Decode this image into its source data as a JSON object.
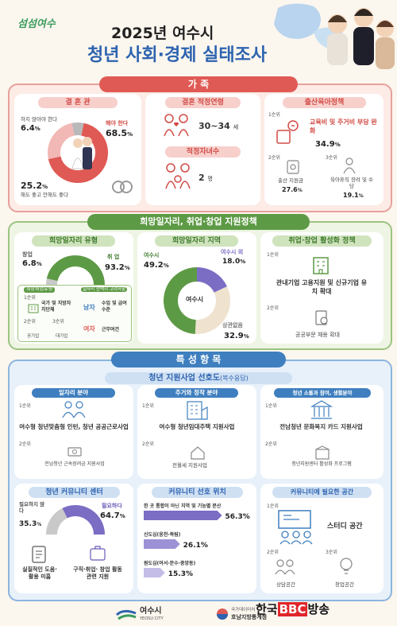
{
  "header": {
    "logo": "섬섬여수",
    "year_title": "2025년 여수시",
    "main_title": "청년 사회·경제 실태조사"
  },
  "sections": {
    "family": "가      족",
    "jobs": "희망일자리, 취업·창업 지원정책",
    "special": "특 성 항 목"
  },
  "family": {
    "marriage": {
      "title": "결 혼 관",
      "must": "해야 한다",
      "must_pct": "68.5",
      "shouldnot": "하지 않아야 한다",
      "shouldnot_pct": "6.4",
      "either": "해도 좋고 안해도 좋다",
      "either_pct": "25.2",
      "unit": "%"
    },
    "marriage_age": {
      "title": "결혼 적정연령",
      "range": "30~34",
      "unit": "세"
    },
    "children": {
      "title": "적정자녀수",
      "value": "2",
      "unit": "명"
    },
    "birth_policy": {
      "title": "출산육아정책",
      "rank1": "1순위",
      "item1": "교육비 및 주거비 부담 완화",
      "pct1": "34.9",
      "rank2": "2순위",
      "item2": "출산 지원금",
      "pct2": "27.6",
      "rank3": "3순위",
      "item3": "육아휴직 장려 및 수당",
      "pct3": "19.1",
      "unit": "%"
    }
  },
  "jobs": {
    "type": {
      "title": "희망일자리 유형",
      "startup": "창업",
      "startup_pct": "6.8",
      "job": "취 업",
      "job_pct": "93.2",
      "unit": "%",
      "inner_title1": "희망취업유형",
      "inner_title2": "일자리 선택시 고려사항",
      "r1": "1순위",
      "r1_item": "국가 및 지방자치단체",
      "r1_gender": "남자",
      "r1_consider": "수입 및 급여수준",
      "r2": "2순위",
      "r2_item": "공기업",
      "r3": "3순위",
      "r3_item": "대기업",
      "r2_gender": "여자",
      "r2_consider": "근무여건"
    },
    "region": {
      "title": "희망일자리 지역",
      "yeosu": "여수시",
      "yeosu_pct": "49.2",
      "outside": "여수시 외",
      "outside_pct": "18.0",
      "any": "상관없음",
      "any_pct": "32.9",
      "center": "여수시",
      "unit": "%"
    },
    "policy": {
      "title": "취업·창업 활성화 정책",
      "rank1": "1순위",
      "item1": "관내기업 고용지원 및 신규기업 유치 확대",
      "rank2": "2순위",
      "item2": "공공부문 채용 확대"
    }
  },
  "special": {
    "pref_title": "청년 지원사업 선호도",
    "pref_note": "(복수응답)",
    "col1": {
      "title": "일자리 분야",
      "rank1": "1순위",
      "item1": "여수형 청년맞춤형 인턴, 청년 공공근로사업",
      "rank2": "2순위",
      "item2": "전남청년 근속장려금 지원사업"
    },
    "col2": {
      "title": "주거와 정착 분야",
      "rank1": "1순위",
      "item1": "여수형 청년임대주택 지원사업",
      "rank2": "2순위",
      "item2": "전월세 지원사업"
    },
    "col3": {
      "title": "청년 소통과 참여, 생활분야",
      "rank1": "1순위",
      "item1": "전남청년 문화복지 카드 지원사업",
      "rank2": "2순위",
      "item2": "청년지원센터 활성화 프로그램"
    },
    "center": {
      "title": "청년 커뮤니티 센터",
      "no": "필요하지 않다",
      "no_pct": "35.3",
      "yes": "필요하다",
      "yes_pct": "64.7",
      "unit": "%",
      "reason_no": "실질적인 도움·활용 미흡",
      "reason_yes": "구직·취업· 창업 활동 관련 지원"
    },
    "location": {
      "title": "커뮤니티 선호 위치",
      "bars": [
        {
          "label": "한 곳 통합이 아닌 지역 및 기능별 분산",
          "value": 56.3
        },
        {
          "label": "신도심(웅천·죽림)",
          "value": 26.1
        },
        {
          "label": "원도심(여서·문수·중앙동)",
          "value": 15.3
        }
      ],
      "unit": "%"
    },
    "space": {
      "title": "커뮤니티에 필요한 공간",
      "rank1": "1순위",
      "item1": "스터디 공간",
      "rank2": "2순위",
      "item2": "상담공간",
      "rank3": "3순위",
      "item3": "창업공간"
    }
  },
  "footer": {
    "city": "여수시",
    "city_en": "YEOSU CITY",
    "stat1": "국가데이터처",
    "stat2": "호남지방통계청",
    "watermark_a": "한국",
    "watermark_b": "BBC",
    "watermark_c": "방송"
  },
  "colors": {
    "red": "#e05a55",
    "green": "#5d9a45",
    "blue": "#3f7fbf",
    "purple": "#7b6cc4",
    "pink": "#f2b8b5"
  },
  "chart_data": [
    {
      "type": "pie",
      "title": "결 혼 관",
      "categories": [
        "해야 한다",
        "하지 않아야 한다",
        "해도 좋고 안해도 좋다"
      ],
      "values": [
        68.5,
        6.4,
        25.2
      ]
    },
    {
      "type": "pie",
      "title": "희망일자리 유형",
      "categories": [
        "취 업",
        "창업"
      ],
      "values": [
        93.2,
        6.8
      ]
    },
    {
      "type": "pie",
      "title": "희망일자리 지역",
      "categories": [
        "여수시",
        "여수시 외",
        "상관없음"
      ],
      "values": [
        49.2,
        18.0,
        32.9
      ]
    },
    {
      "type": "pie",
      "title": "청년 커뮤니티 센터",
      "categories": [
        "필요하다",
        "필요하지 않다"
      ],
      "values": [
        64.7,
        35.3
      ]
    },
    {
      "type": "bar",
      "title": "커뮤니티 선호 위치",
      "categories": [
        "한 곳 통합이 아닌 지역 및 기능별 분산",
        "신도심(웅천·죽림)",
        "원도심(여서·문수·중앙동)"
      ],
      "values": [
        56.3,
        26.1,
        15.3
      ],
      "xlim": [
        0,
        60
      ]
    }
  ]
}
